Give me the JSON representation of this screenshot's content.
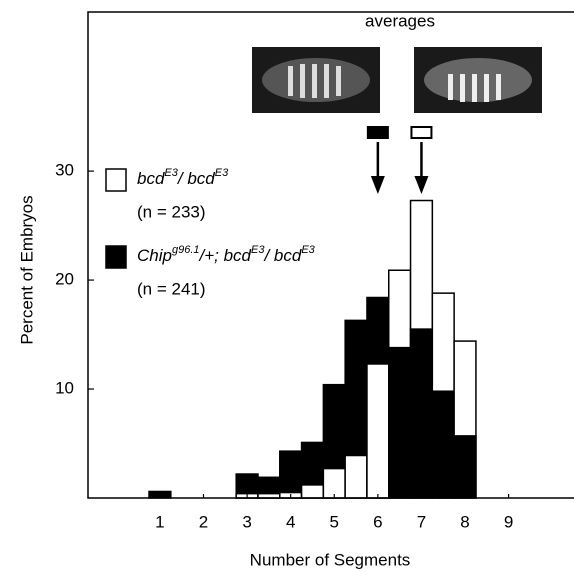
{
  "chart_data": {
    "type": "histogram",
    "annotation": "averages",
    "x_label": "Number of Segments",
    "y_label": "Percent of Embryos",
    "bins": [
      0.75,
      1.25,
      1.75,
      2.25,
      2.75,
      3.25,
      3.75,
      4.25,
      4.75,
      5.25,
      5.75,
      6.25,
      6.75,
      7.25,
      7.75,
      8.25
    ],
    "series": [
      {
        "name": [
          "bcd",
          "E3",
          "/ bcd",
          "E3"
        ],
        "n_label": "(n = 233)",
        "color": "#ffffff",
        "average": 7,
        "values": [
          0,
          0,
          0,
          0,
          0.4,
          0.4,
          0.5,
          1.2,
          2.7,
          3.9,
          12.3,
          20.9,
          27.3,
          18.8,
          14.4
        ]
      },
      {
        "name": [
          "Chip",
          "g96.1",
          "/+; bcd",
          "E3",
          "/ bcd",
          "E3"
        ],
        "n_label": "(n = 241)",
        "color": "#000000",
        "average": 6,
        "values": [
          0.6,
          0,
          0,
          0,
          2.2,
          1.9,
          4.3,
          5.1,
          10.4,
          16.3,
          18.4,
          13.8,
          15.5,
          9.8,
          5.7
        ]
      }
    ],
    "xlim": [
      -0.65,
      10.5
    ],
    "xticks": [
      1,
      2,
      3,
      4,
      5,
      6,
      7,
      8,
      9
    ],
    "ylim": [
      0,
      44.6
    ],
    "yticks": [
      10,
      20,
      30
    ]
  }
}
